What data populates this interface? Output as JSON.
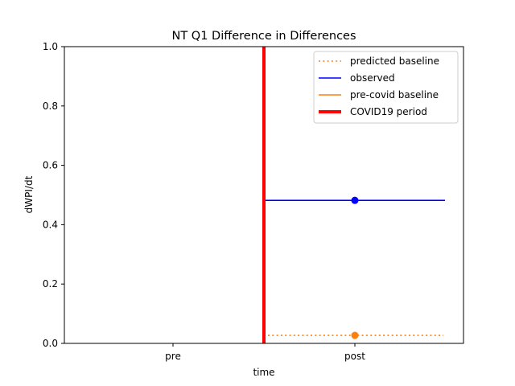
{
  "chart_data": {
    "type": "line",
    "title": "NT Q1 Difference in Differences",
    "xlabel": "time",
    "ylabel": "dWPI/dt",
    "categories": [
      "pre",
      "post"
    ],
    "ylim": [
      0,
      1.0
    ],
    "yticks": [
      "0.0",
      "0.2",
      "0.4",
      "0.6",
      "0.8",
      "1.0"
    ],
    "grid": false,
    "legend_position": "top-right",
    "series": [
      {
        "name": "predicted baseline",
        "color": "#ff7f0e",
        "style": "dotted",
        "category": "post",
        "value": 0.027
      },
      {
        "name": "observed",
        "color": "#0000ff",
        "style": "solid",
        "category": "post",
        "value": 0.482
      },
      {
        "name": "pre-covid baseline",
        "color": "#ff7f0e",
        "style": "solid",
        "category": "pre",
        "value": null
      },
      {
        "name": "COVID19 period",
        "color": "#ff0000",
        "style": "thick-vertical",
        "x_between": [
          "pre",
          "post"
        ]
      }
    ]
  }
}
